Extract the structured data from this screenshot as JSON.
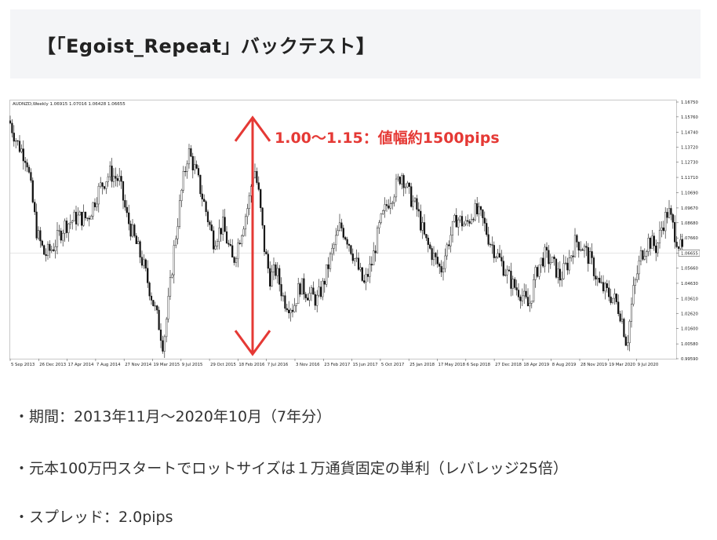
{
  "heading": {
    "title": "【「Egoist_Repeat」バックテスト】"
  },
  "chart_data": {
    "type": "candlestick",
    "symbol_header": "AUDNZD,Weekly  1.06915 1.07016 1.06428 1.06655",
    "current_price_label": "1.06655",
    "current_price": 1.06655,
    "ylim": [
      0.9959,
      1.1675
    ],
    "y_ticks": [
      "1.16750",
      "1.15760",
      "1.14740",
      "1.13720",
      "1.12730",
      "1.11710",
      "1.10690",
      "1.09670",
      "1.08680",
      "1.07660",
      "1.06655",
      "1.05660",
      "1.04630",
      "1.03610",
      "1.02620",
      "1.01600",
      "1.00580",
      "0.99590"
    ],
    "x_ticks": [
      "5 Sep 2013",
      "26 Dec 2013",
      "17 Apr 2014",
      "7 Aug 2014",
      "27 Nov 2014",
      "19 Mar 2015",
      "9 Jul 2015",
      "29 Oct 2015",
      "18 Feb 2016",
      "7 Jul 2016",
      "3 Nov 2016",
      "23 Feb 2017",
      "15 Jun 2017",
      "5 Oct 2017",
      "25 Jan 2018",
      "17 May 2018",
      "6 Sep 2018",
      "27 Dec 2018",
      "18 Apr 2019",
      "8 Aug 2019",
      "28 Nov 2019",
      "19 Mar 2020",
      "9 Jul 2020"
    ],
    "price_path": [
      [
        0,
        1.155
      ],
      [
        10,
        1.14
      ],
      [
        22,
        1.13
      ],
      [
        35,
        1.08
      ],
      [
        45,
        1.065
      ],
      [
        55,
        1.07
      ],
      [
        70,
        1.085
      ],
      [
        85,
        1.09
      ],
      [
        100,
        1.09
      ],
      [
        115,
        1.11
      ],
      [
        128,
        1.12
      ],
      [
        140,
        1.115
      ],
      [
        150,
        1.09
      ],
      [
        160,
        1.075
      ],
      [
        170,
        1.06
      ],
      [
        180,
        1.04
      ],
      [
        190,
        1.02
      ],
      [
        196,
        1.005
      ],
      [
        202,
        1.03
      ],
      [
        210,
        1.07
      ],
      [
        220,
        1.11
      ],
      [
        228,
        1.135
      ],
      [
        238,
        1.12
      ],
      [
        248,
        1.1
      ],
      [
        260,
        1.075
      ],
      [
        272,
        1.085
      ],
      [
        285,
        1.06
      ],
      [
        295,
        1.08
      ],
      [
        305,
        1.1
      ],
      [
        312,
        1.125
      ],
      [
        318,
        1.105
      ],
      [
        325,
        1.07
      ],
      [
        332,
        1.05
      ],
      [
        340,
        1.055
      ],
      [
        350,
        1.035
      ],
      [
        362,
        1.03
      ],
      [
        370,
        1.045
      ],
      [
        380,
        1.04
      ],
      [
        392,
        1.035
      ],
      [
        400,
        1.045
      ],
      [
        410,
        1.065
      ],
      [
        422,
        1.085
      ],
      [
        432,
        1.075
      ],
      [
        442,
        1.06
      ],
      [
        452,
        1.045
      ],
      [
        462,
        1.06
      ],
      [
        472,
        1.085
      ],
      [
        482,
        1.1
      ],
      [
        492,
        1.11
      ],
      [
        500,
        1.12
      ],
      [
        510,
        1.105
      ],
      [
        520,
        1.095
      ],
      [
        530,
        1.075
      ],
      [
        540,
        1.065
      ],
      [
        550,
        1.055
      ],
      [
        560,
        1.075
      ],
      [
        570,
        1.09
      ],
      [
        582,
        1.085
      ],
      [
        592,
        1.095
      ],
      [
        602,
        1.09
      ],
      [
        612,
        1.075
      ],
      [
        622,
        1.065
      ],
      [
        632,
        1.055
      ],
      [
        642,
        1.045
      ],
      [
        652,
        1.04
      ],
      [
        662,
        1.03
      ],
      [
        672,
        1.055
      ],
      [
        682,
        1.065
      ],
      [
        692,
        1.06
      ],
      [
        702,
        1.05
      ],
      [
        712,
        1.06
      ],
      [
        722,
        1.075
      ],
      [
        732,
        1.07
      ],
      [
        742,
        1.06
      ],
      [
        752,
        1.045
      ],
      [
        762,
        1.04
      ],
      [
        772,
        1.035
      ],
      [
        780,
        1.025
      ],
      [
        787,
        1.005
      ],
      [
        795,
        1.04
      ],
      [
        805,
        1.065
      ],
      [
        815,
        1.075
      ],
      [
        825,
        1.07
      ],
      [
        832,
        1.085
      ],
      [
        840,
        1.095
      ],
      [
        848,
        1.08
      ],
      [
        855,
        1.07
      ],
      [
        860,
        1.066
      ]
    ],
    "annotation": {
      "label": "1.00～1.15：値幅約1500pips",
      "arrow_from": 1.155,
      "arrow_to": 1.0,
      "color": "#e53935"
    }
  },
  "bullets": [
    "・期間：2013年11月～2020年10月（7年分）",
    "・元本100万円スタートでロットサイズは１万通貨固定の単利（レバレッジ25倍）",
    "・スプレッド：2.0pips"
  ]
}
